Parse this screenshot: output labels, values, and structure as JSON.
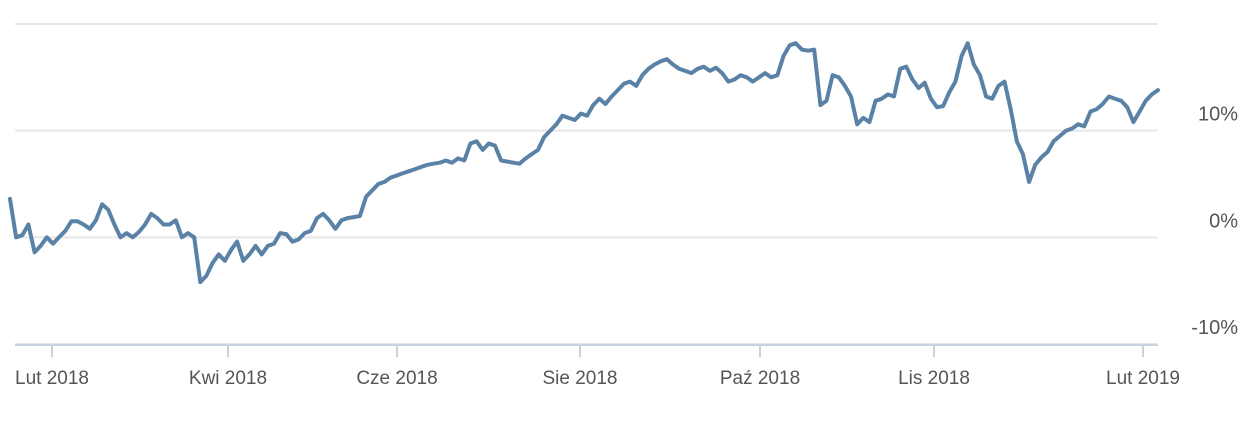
{
  "chart_data": {
    "type": "line",
    "title": "",
    "xlabel": "",
    "ylabel": "",
    "x_tick_labels": [
      "Lut 2018",
      "Kwi 2018",
      "Cze 2018",
      "Sie 2018",
      "Paź 2018",
      "Lis 2018",
      "Lut 2019"
    ],
    "y_ticks": [
      {
        "value": 10,
        "label": "10%"
      },
      {
        "value": 0,
        "label": "0%"
      },
      {
        "value": -10,
        "label": "-10%"
      }
    ],
    "ylim": [
      -10,
      20
    ],
    "grid": true,
    "colors": {
      "line": "#5a82a6",
      "grid": "#e6e6e6",
      "axis": "#c8d2e0"
    },
    "series": [
      {
        "values": [
          3.6,
          0.0,
          0.2,
          1.2,
          -1.4,
          -0.8,
          0.0,
          -0.6,
          0.0,
          0.6,
          1.5,
          1.5,
          1.2,
          0.8,
          1.6,
          3.1,
          2.6,
          1.2,
          0.0,
          0.4,
          0.0,
          0.5,
          1.2,
          2.2,
          1.8,
          1.2,
          1.2,
          1.6,
          0.0,
          0.4,
          0.0,
          -4.2,
          -3.6,
          -2.4,
          -1.6,
          -2.2,
          -1.2,
          -0.4,
          -2.2,
          -1.6,
          -0.8,
          -1.6,
          -0.8,
          -0.6,
          0.4,
          0.3,
          -0.4,
          -0.2,
          0.4,
          0.6,
          1.8,
          2.2,
          1.6,
          0.8,
          1.6,
          1.8,
          1.9,
          2.0,
          3.8,
          4.4,
          5.0,
          5.2,
          5.6,
          5.8,
          6.0,
          6.2,
          6.4,
          6.6,
          6.8,
          6.9,
          7.0,
          7.2,
          7.0,
          7.4,
          7.2,
          8.8,
          9.0,
          8.2,
          8.8,
          8.6,
          7.2,
          7.1,
          7.0,
          6.9,
          7.4,
          7.8,
          8.2,
          9.4,
          10.0,
          10.6,
          11.4,
          11.2,
          11.0,
          11.6,
          11.4,
          12.4,
          13.0,
          12.5,
          13.2,
          13.8,
          14.4,
          14.6,
          14.2,
          15.2,
          15.8,
          16.2,
          16.5,
          16.7,
          16.2,
          15.8,
          15.6,
          15.4,
          15.8,
          16.0,
          15.6,
          15.9,
          15.4,
          14.6,
          14.8,
          15.2,
          15.0,
          14.6,
          15.0,
          15.4,
          15.0,
          15.2,
          17.0,
          18.0,
          18.2,
          17.6,
          17.5,
          17.6,
          12.4,
          12.8,
          15.2,
          15.0,
          14.2,
          13.2,
          10.6,
          11.2,
          10.8,
          12.8,
          13.0,
          13.4,
          13.2,
          15.8,
          16.0,
          14.8,
          14.0,
          14.5,
          13.0,
          12.2,
          12.3,
          13.6,
          14.6,
          17.0,
          18.2,
          16.2,
          15.2,
          13.2,
          13.0,
          14.2,
          14.6,
          12.0,
          9.0,
          7.8,
          5.2,
          6.8,
          7.5,
          8.0,
          9.0,
          9.5,
          10.0,
          10.2,
          10.6,
          10.4,
          11.8,
          12.0,
          12.5,
          13.2,
          13.0,
          12.8,
          12.2,
          10.8,
          11.8,
          12.8,
          13.4,
          13.8
        ]
      }
    ]
  }
}
